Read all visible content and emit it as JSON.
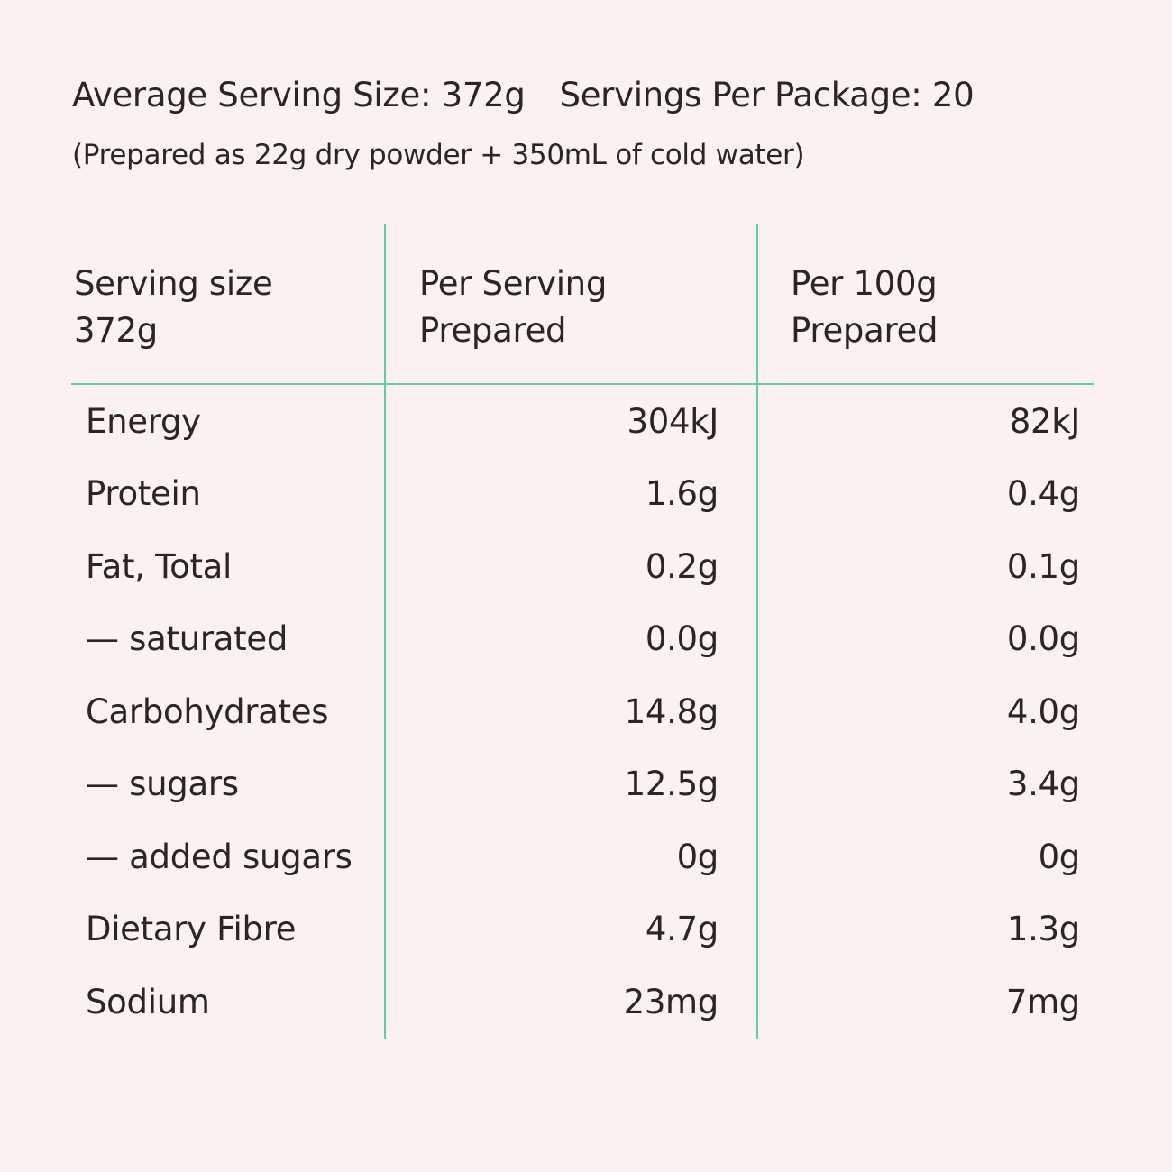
{
  "header": {
    "average_serving": "Average Serving Size: 372g",
    "servings_per_package": "Servings Per Package: 20",
    "preparation_note": "(Prepared as 22g dry powder + 350mL of cold water)"
  },
  "table": {
    "columns": [
      {
        "line1": "Serving size",
        "line2": "372g"
      },
      {
        "line1": "Per Serving",
        "line2": "Prepared"
      },
      {
        "line1": "Per 100g",
        "line2": "Prepared"
      }
    ],
    "rows": [
      {
        "label": "Energy",
        "per_serving": "304kJ",
        "per_100g": "82kJ"
      },
      {
        "label": "Protein",
        "per_serving": "1.6g",
        "per_100g": "0.4g"
      },
      {
        "label": "Fat, Total",
        "per_serving": "0.2g",
        "per_100g": "0.1g"
      },
      {
        "label": "— saturated",
        "per_serving": "0.0g",
        "per_100g": "0.0g"
      },
      {
        "label": "Carbohydrates",
        "per_serving": "14.8g",
        "per_100g": "4.0g"
      },
      {
        "label": "— sugars",
        "per_serving": "12.5g",
        "per_100g": "3.4g"
      },
      {
        "label": "— added sugars",
        "per_serving": "0g",
        "per_100g": "0g"
      },
      {
        "label": "Dietary Fibre",
        "per_serving": "4.7g",
        "per_100g": "1.3g"
      },
      {
        "label": "Sodium",
        "per_serving": "23mg",
        "per_100g": "7mg"
      }
    ]
  },
  "colors": {
    "background": "#fbf1ee",
    "text": "#2e2522",
    "rule": "#66c9a6"
  }
}
